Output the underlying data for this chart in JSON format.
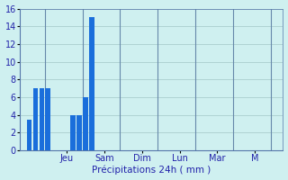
{
  "bar_values": [
    0,
    3.5,
    7.0,
    7.0,
    7.0,
    0,
    0,
    0,
    4.0,
    4.0,
    6.0,
    15.0,
    0,
    0,
    0,
    0,
    0,
    0,
    0,
    0,
    0,
    0,
    0,
    0,
    0,
    0,
    0,
    0,
    0,
    0,
    0,
    0,
    0,
    0,
    0,
    0,
    0,
    0,
    0,
    0,
    0,
    0
  ],
  "bar_color": "#1a6edb",
  "background_color": "#cff0f0",
  "grid_color": "#aacece",
  "axis_label_color": "#2222aa",
  "tick_label_color": "#2222aa",
  "xlabel": "Précipitations 24h ( mm )",
  "ylim": [
    0,
    16
  ],
  "yticks": [
    0,
    2,
    4,
    6,
    8,
    10,
    12,
    14,
    16
  ],
  "x_day_labels": [
    "Jeu",
    "Sam",
    "Dim",
    "Lun",
    "Mar",
    "M"
  ],
  "x_day_positions": [
    7,
    13,
    19,
    25,
    31,
    37
  ],
  "n_bars": 42,
  "bar_width": 0.85,
  "separator_positions": [
    3.5,
    9.5,
    15.5,
    21.5,
    27.5,
    33.5,
    39.5
  ]
}
